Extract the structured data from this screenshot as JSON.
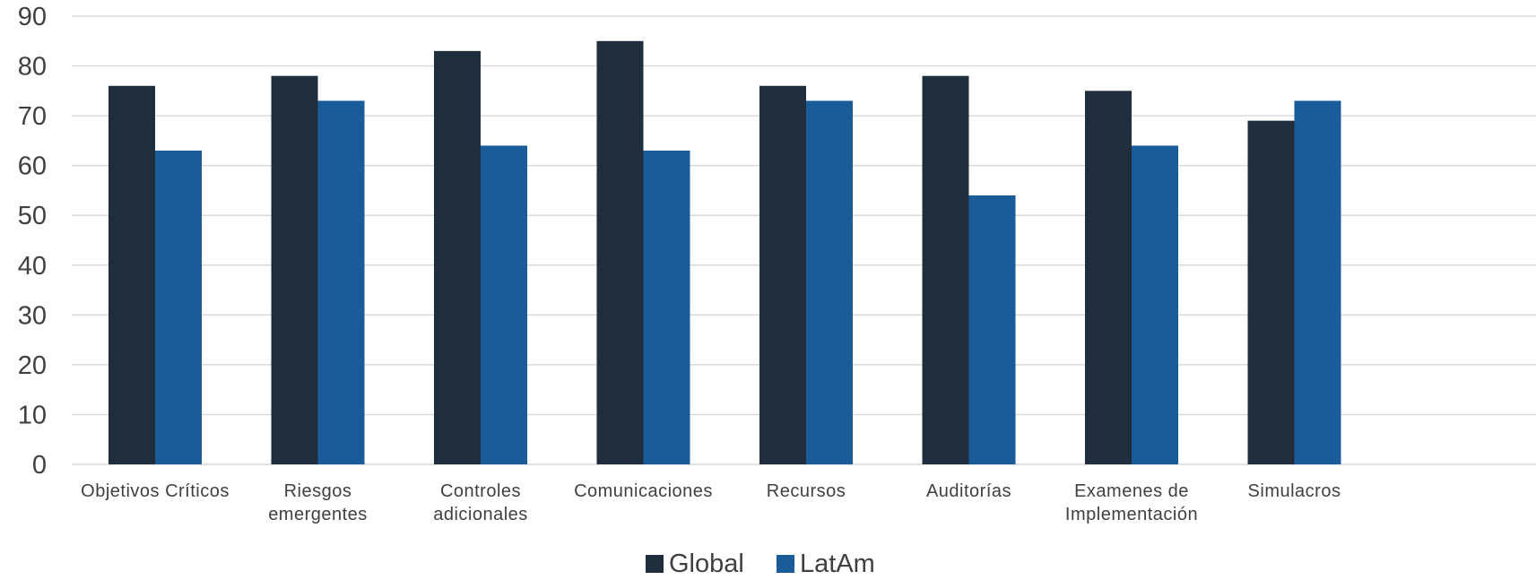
{
  "chart_data": {
    "type": "bar",
    "categories": [
      [
        "Objetivos Críticos"
      ],
      [
        "Riesgos",
        "emergentes"
      ],
      [
        "Controles",
        "adicionales"
      ],
      [
        "Comunicaciones"
      ],
      [
        "Recursos"
      ],
      [
        "Auditorías"
      ],
      [
        "Examenes de",
        "Implementación"
      ],
      [
        "Simulacros"
      ]
    ],
    "series": [
      {
        "name": "Global",
        "color": "#1f2d3d",
        "values": [
          76,
          78,
          83,
          85,
          76,
          78,
          75,
          69
        ]
      },
      {
        "name": "LatAm",
        "color": "#1a5c9a",
        "values": [
          63,
          73,
          64,
          63,
          73,
          54,
          64,
          73
        ]
      }
    ],
    "ylim": [
      0,
      90
    ],
    "yticks": [
      0,
      10,
      20,
      30,
      40,
      50,
      60,
      70,
      80,
      90
    ],
    "grid": true,
    "legend_position": "bottom"
  }
}
